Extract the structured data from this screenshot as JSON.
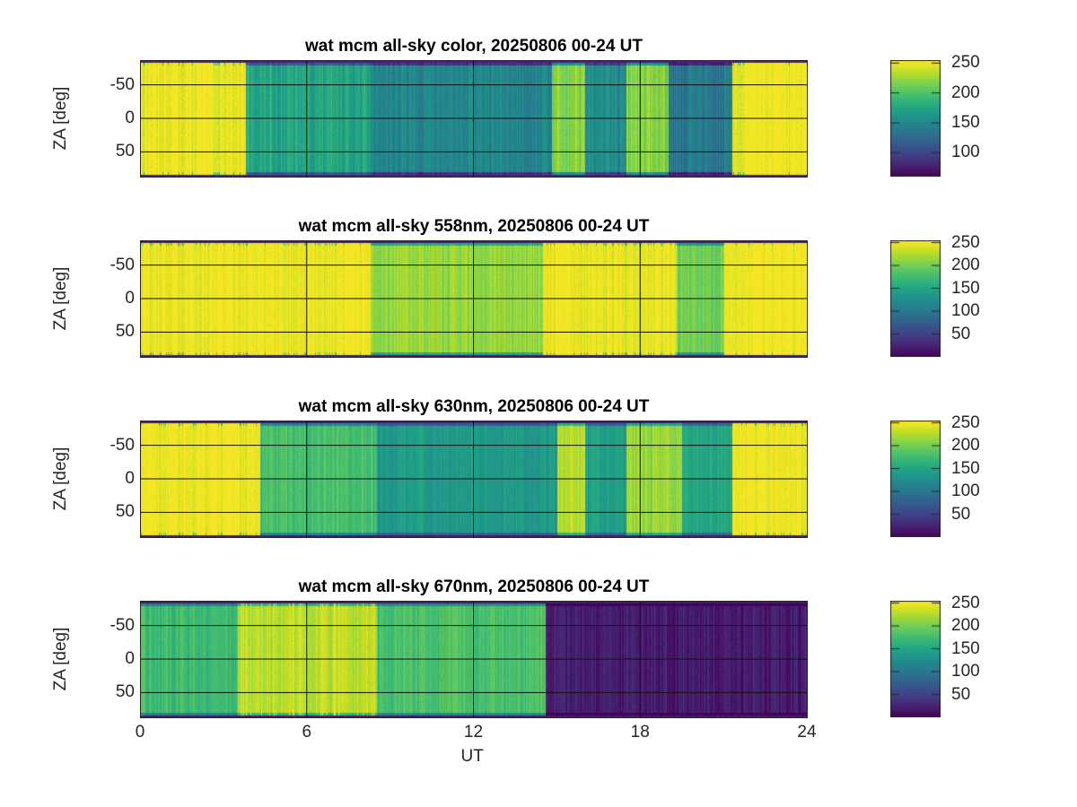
{
  "chart_data": [
    {
      "type": "heatmap",
      "title": "wat mcm all-sky color, 20250806 00-24 UT",
      "xlabel": "",
      "ylabel": "ZA [deg]",
      "xlim": [
        0,
        24
      ],
      "ylim": [
        -87,
        87
      ],
      "y_reversed": true,
      "xticks": [
        0,
        6,
        12,
        18,
        24
      ],
      "yticks": [
        -50,
        0,
        50
      ],
      "grid": true,
      "colormap": "viridis",
      "clim": [
        60,
        255
      ],
      "colorbar_ticks": [
        100,
        150,
        200,
        250
      ],
      "segments": [
        {
          "t0": 0,
          "t1": 3.8,
          "value": 252
        },
        {
          "t0": 3.8,
          "t1": 8.3,
          "value": 175,
          "note": "patchy streaks, upper half"
        },
        {
          "t0": 8.3,
          "t1": 14.8,
          "value": 150
        },
        {
          "t0": 14.8,
          "t1": 16.0,
          "value": 220
        },
        {
          "t0": 16.0,
          "t1": 17.5,
          "value": 155
        },
        {
          "t0": 17.5,
          "t1": 19.0,
          "value": 220
        },
        {
          "t0": 19.0,
          "t1": 21.3,
          "value": 140
        },
        {
          "t0": 21.3,
          "t1": 24,
          "value": 252
        }
      ]
    },
    {
      "type": "heatmap",
      "title": "wat mcm all-sky 558nm, 20250806 00-24 UT",
      "xlabel": "",
      "ylabel": "ZA [deg]",
      "xlim": [
        0,
        24
      ],
      "ylim": [
        -87,
        87
      ],
      "y_reversed": true,
      "xticks": [
        0,
        6,
        12,
        18,
        24
      ],
      "yticks": [
        -50,
        0,
        50
      ],
      "grid": true,
      "colormap": "viridis",
      "clim": [
        0,
        255
      ],
      "colorbar_ticks": [
        50,
        100,
        150,
        200,
        250
      ],
      "segments": [
        {
          "t0": 0,
          "t1": 8.3,
          "value": 250
        },
        {
          "t0": 8.3,
          "t1": 14.5,
          "value": 215
        },
        {
          "t0": 14.5,
          "t1": 19.3,
          "value": 248
        },
        {
          "t0": 19.3,
          "t1": 21.0,
          "value": 200
        },
        {
          "t0": 21.0,
          "t1": 24,
          "value": 252
        }
      ]
    },
    {
      "type": "heatmap",
      "title": "wat mcm all-sky 630nm, 20250806 00-24 UT",
      "xlabel": "",
      "ylabel": "ZA [deg]",
      "xlim": [
        0,
        24
      ],
      "ylim": [
        -87,
        87
      ],
      "y_reversed": true,
      "xticks": [
        0,
        6,
        12,
        18,
        24
      ],
      "yticks": [
        -50,
        0,
        50
      ],
      "grid": true,
      "colormap": "viridis",
      "clim": [
        0,
        255
      ],
      "colorbar_ticks": [
        50,
        100,
        150,
        200,
        250
      ],
      "segments": [
        {
          "t0": 0,
          "t1": 4.3,
          "value": 252
        },
        {
          "t0": 4.3,
          "t1": 8.5,
          "value": 180
        },
        {
          "t0": 8.5,
          "t1": 15.0,
          "value": 140
        },
        {
          "t0": 15.0,
          "t1": 16.0,
          "value": 225
        },
        {
          "t0": 16.0,
          "t1": 17.5,
          "value": 145
        },
        {
          "t0": 17.5,
          "t1": 19.5,
          "value": 215
        },
        {
          "t0": 19.5,
          "t1": 21.3,
          "value": 150
        },
        {
          "t0": 21.3,
          "t1": 24,
          "value": 252
        }
      ]
    },
    {
      "type": "heatmap",
      "title": "wat mcm all-sky 670nm, 20250806 00-24 UT",
      "xlabel": "UT",
      "ylabel": "ZA [deg]",
      "xlim": [
        0,
        24
      ],
      "ylim": [
        -87,
        87
      ],
      "y_reversed": true,
      "xticks": [
        0,
        6,
        12,
        18,
        24
      ],
      "yticks": [
        -50,
        0,
        50
      ],
      "grid": true,
      "colormap": "viridis",
      "clim": [
        0,
        255
      ],
      "colorbar_ticks": [
        50,
        100,
        150,
        200,
        250
      ],
      "segments": [
        {
          "t0": 0,
          "t1": 3.5,
          "value": 175
        },
        {
          "t0": 3.5,
          "t1": 8.5,
          "value": 230
        },
        {
          "t0": 8.5,
          "t1": 14.6,
          "value": 180
        },
        {
          "t0": 14.6,
          "t1": 24,
          "value": 20
        }
      ]
    }
  ],
  "panels": [
    {
      "title": "wat mcm all-sky color, 20250806 00-24 UT",
      "ylabel": "ZA [deg]",
      "yticks": [
        "-50",
        "0",
        "50"
      ],
      "cbticks": [
        "100",
        "150",
        "200",
        "250"
      ]
    },
    {
      "title": "wat mcm all-sky 558nm, 20250806 00-24 UT",
      "ylabel": "ZA [deg]",
      "yticks": [
        "-50",
        "0",
        "50"
      ],
      "cbticks": [
        "50",
        "100",
        "150",
        "200",
        "250"
      ]
    },
    {
      "title": "wat mcm all-sky 630nm, 20250806 00-24 UT",
      "ylabel": "ZA [deg]",
      "yticks": [
        "-50",
        "0",
        "50"
      ],
      "cbticks": [
        "50",
        "100",
        "150",
        "200",
        "250"
      ]
    },
    {
      "title": "wat mcm all-sky 670nm, 20250806 00-24 UT",
      "ylabel": "ZA [deg]",
      "yticks": [
        "-50",
        "0",
        "50"
      ],
      "cbticks": [
        "50",
        "100",
        "150",
        "200",
        "250"
      ]
    }
  ],
  "xaxis": {
    "ticks": [
      "0",
      "6",
      "12",
      "18",
      "24"
    ],
    "label": "UT"
  }
}
